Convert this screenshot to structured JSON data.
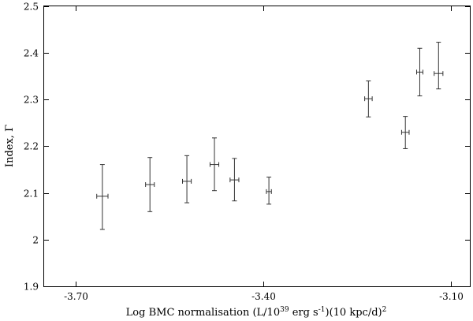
{
  "chart_data": {
    "type": "scatter",
    "title": "",
    "xlabel": {
      "main": "Log BMC normalisation (L/10",
      "sup1": "39",
      "mid": " erg s",
      "sup2": "-1",
      "tail": ")(10 kpc/d)",
      "sup3": "2"
    },
    "ylabel": "Index, Γ",
    "xlim": [
      -3.75,
      -3.07
    ],
    "ylim": [
      1.9,
      2.5
    ],
    "x_ticks": [
      -3.7,
      -3.4,
      -3.1
    ],
    "x_tick_labels": [
      "-3.70",
      "-3.40",
      "-3.10"
    ],
    "y_ticks": [
      1.9,
      2.0,
      2.1,
      2.2,
      2.3,
      2.4,
      2.5
    ],
    "y_tick_labels": [
      "1.9",
      "2",
      "2.1",
      "2.2",
      "2.3",
      "2.4",
      "2.5"
    ],
    "grid": false,
    "legend": "none",
    "points": [
      {
        "x": -3.657,
        "y": 2.093,
        "xerr": 0.009,
        "yerr_low": 0.071,
        "yerr_high": 0.068
      },
      {
        "x": -3.581,
        "y": 2.118,
        "xerr": 0.007,
        "yerr_low": 0.058,
        "yerr_high": 0.058
      },
      {
        "x": -3.522,
        "y": 2.125,
        "xerr": 0.007,
        "yerr_low": 0.046,
        "yerr_high": 0.055
      },
      {
        "x": -3.478,
        "y": 2.161,
        "xerr": 0.007,
        "yerr_low": 0.056,
        "yerr_high": 0.057
      },
      {
        "x": -3.446,
        "y": 2.128,
        "xerr": 0.007,
        "yerr_low": 0.045,
        "yerr_high": 0.046
      },
      {
        "x": -3.391,
        "y": 2.103,
        "xerr": 0.004,
        "yerr_low": 0.027,
        "yerr_high": 0.031
      },
      {
        "x": -3.232,
        "y": 2.302,
        "xerr": 0.006,
        "yerr_low": 0.039,
        "yerr_high": 0.038
      },
      {
        "x": -3.173,
        "y": 2.23,
        "xerr": 0.006,
        "yerr_low": 0.035,
        "yerr_high": 0.034
      },
      {
        "x": -3.15,
        "y": 2.359,
        "xerr": 0.005,
        "yerr_low": 0.051,
        "yerr_high": 0.051
      },
      {
        "x": -3.12,
        "y": 2.356,
        "xerr": 0.007,
        "yerr_low": 0.033,
        "yerr_high": 0.067
      }
    ]
  }
}
